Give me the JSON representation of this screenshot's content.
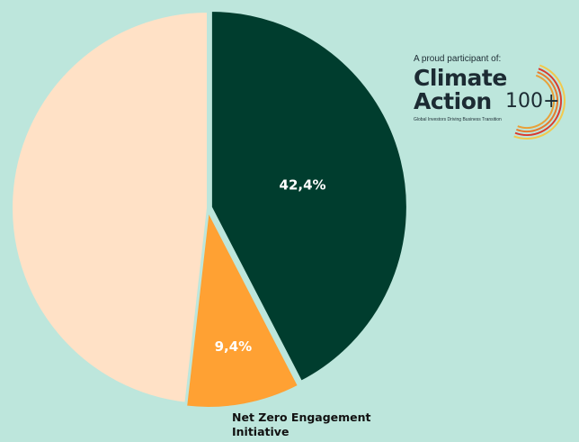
{
  "chart_data": {
    "type": "pie",
    "title": "",
    "slices": [
      {
        "label": "",
        "value": 42.4,
        "display": "42,4%",
        "color": "#003d2e"
      },
      {
        "label": "Net Zero Engagement Initiative",
        "value": 9.4,
        "display": "9,4%",
        "color": "#ffa133"
      },
      {
        "label": "",
        "value": 48.2,
        "display": "",
        "color": "#ffe1c6"
      }
    ],
    "start_angle_deg": 0,
    "direction": "clockwise",
    "background": "#bde6dc"
  },
  "callout": {
    "line1": "Net Zero Engagement",
    "line2": "Initiative"
  },
  "logo": {
    "tagline": "A proud participant of:",
    "word1": "Climate",
    "word2": "Action",
    "number": "100+",
    "subline": "Global Investors Driving Business Transition",
    "arc_colors": [
      "#e8a13a",
      "#e67a2e",
      "#d93a30",
      "#f2c94c"
    ]
  }
}
